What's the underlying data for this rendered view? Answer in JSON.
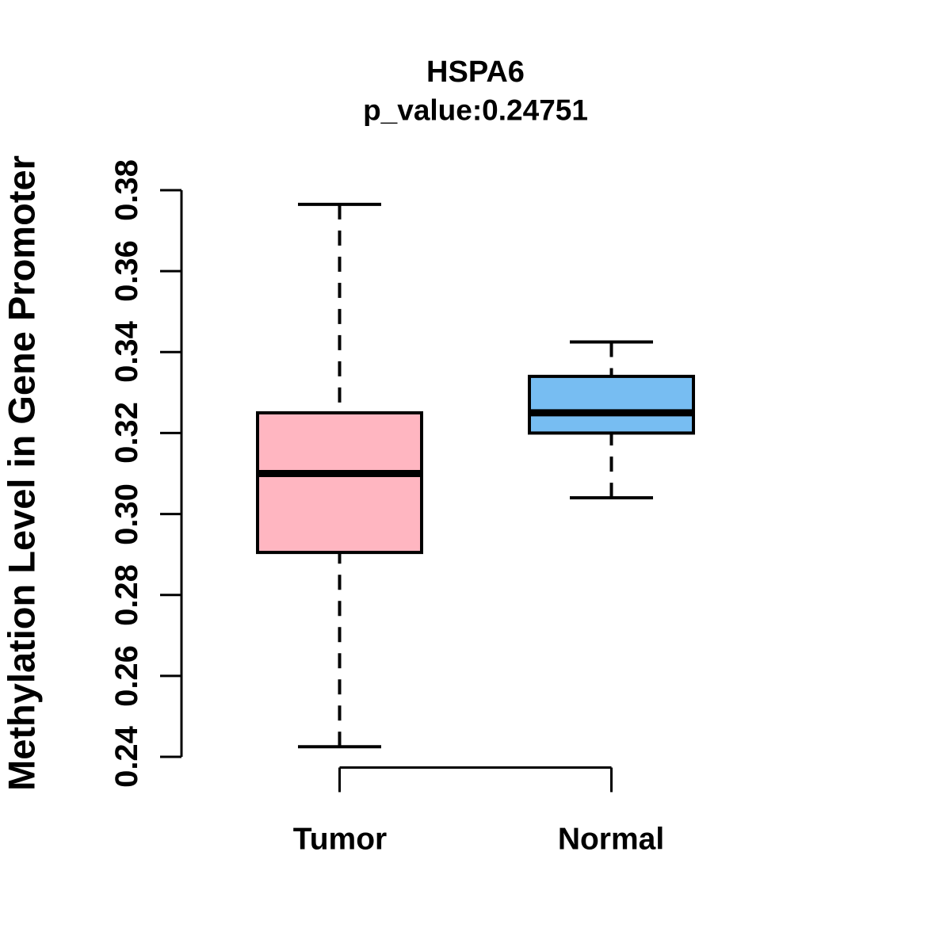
{
  "title": {
    "line1": "HSPA6",
    "line2": "p_value:0.24751"
  },
  "y_axis": {
    "label": "Methylation Level in Gene Promoter",
    "tick_labels": [
      "0.24",
      "0.26",
      "0.28",
      "0.30",
      "0.32",
      "0.34",
      "0.36",
      "0.38"
    ]
  },
  "x_axis": {
    "categories": [
      "Tumor",
      "Normal"
    ]
  },
  "colors": {
    "tumor_box": "#FFB6C1",
    "normal_box": "#77BDF2",
    "line": "#000000",
    "background": "#ffffff"
  },
  "chart_data": {
    "type": "boxplot",
    "title": "HSPA6",
    "subtitle": "p_value:0.24751",
    "p_value": 0.24751,
    "gene": "HSPA6",
    "xlabel": "",
    "ylabel": "Methylation Level in Gene Promoter",
    "ylim": [
      0.24,
      0.38
    ],
    "y_ticks": [
      0.24,
      0.26,
      0.28,
      0.3,
      0.32,
      0.34,
      0.36,
      0.38
    ],
    "grid": false,
    "legend": "none",
    "categories": [
      "Tumor",
      "Normal"
    ],
    "series": [
      {
        "name": "Tumor",
        "color": "#FFB6C1",
        "whisker_low": 0.2425,
        "q1": 0.2905,
        "median": 0.31,
        "q3": 0.325,
        "whisker_high": 0.3765
      },
      {
        "name": "Normal",
        "color": "#77BDF2",
        "whisker_low": 0.304,
        "q1": 0.32,
        "median": 0.325,
        "q3": 0.334,
        "whisker_high": 0.3425
      }
    ]
  }
}
